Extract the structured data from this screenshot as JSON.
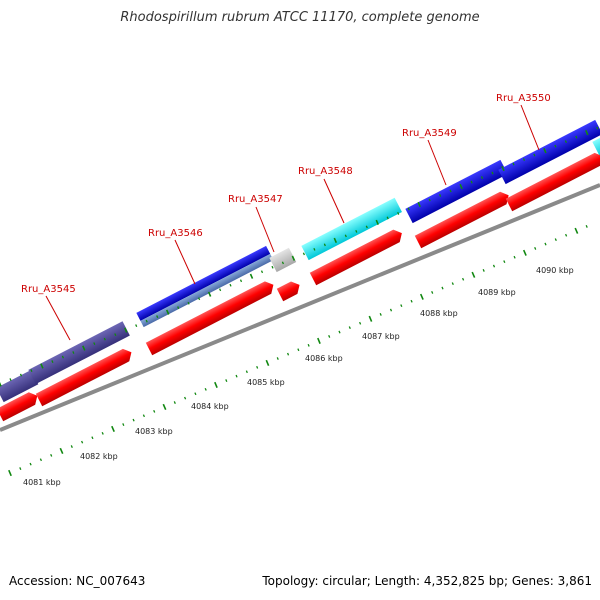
{
  "title": "Rhodospirillum rubrum ATCC 11170, complete genome",
  "footer": {
    "accession": "Accession: NC_007643",
    "summary": "Topology: circular; Length: 4,352,825 bp; Genes: 3,861"
  },
  "colors": {
    "backbone": "#8a8a8a",
    "cds": "#ff0000",
    "label": "#cc0000",
    "tick": "#118811",
    "slate_feature": "#4b4596",
    "blue_feature": "#0000dd",
    "cyan_feature": "#00e6ee",
    "gray_feature": "#c8c8c8"
  },
  "gene_labels": [
    "Rru_A3545",
    "Rru_A3546",
    "Rru_A3547",
    "Rru_A3548",
    "Rru_A3549",
    "Rru_A3550"
  ],
  "kbp_labels": [
    "4081 kbp",
    "4082 kbp",
    "4083 kbp",
    "4084 kbp",
    "4085 kbp",
    "4086 kbp",
    "4087 kbp",
    "4088 kbp",
    "4089 kbp",
    "4090 kbp"
  ]
}
